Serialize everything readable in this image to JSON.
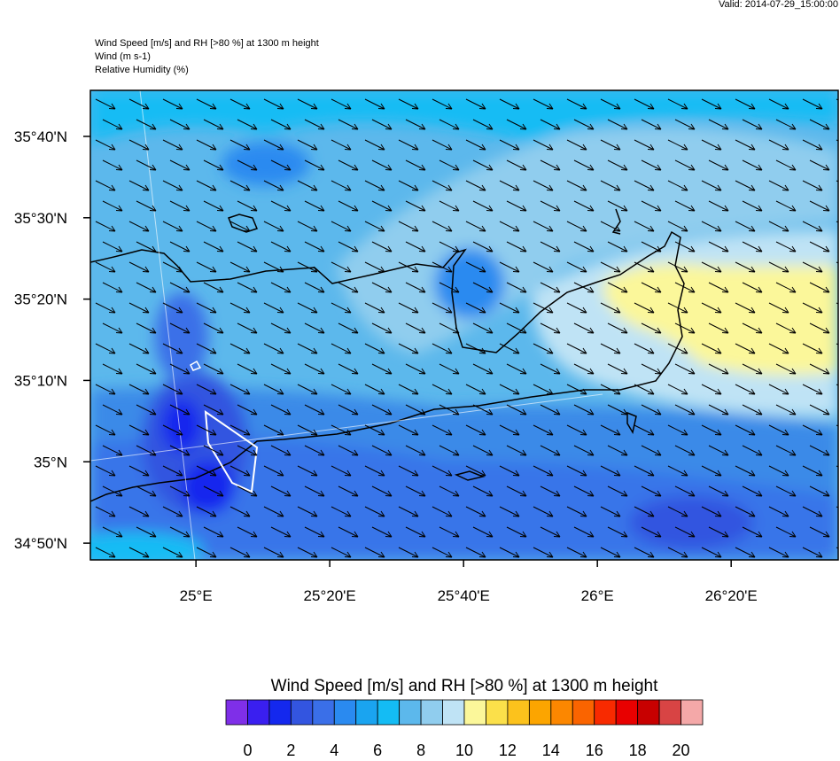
{
  "header": {
    "valid": "Valid: 2014-07-29_15:00:00",
    "lines": [
      "Wind Speed [m/s] and RH [>80 %] at 1300 m height",
      "Wind   (m s-1)",
      "Relative Humidity   (%)"
    ]
  },
  "map": {
    "lat_range": [
      34.799,
      35.761
    ],
    "lon_range": [
      24.737,
      26.6
    ],
    "lat_ticks": [
      {
        "value": 35.6667,
        "label": "35°40'N"
      },
      {
        "value": 35.5,
        "label": "35°30'N"
      },
      {
        "value": 35.3333,
        "label": "35°20'N"
      },
      {
        "value": 35.1667,
        "label": "35°10'N"
      },
      {
        "value": 35,
        "label": "35°N"
      },
      {
        "value": 34.8333,
        "label": "34°50'N"
      }
    ],
    "lon_ticks": [
      {
        "value": 25,
        "label": "25°E"
      },
      {
        "value": 25.3333,
        "label": "25°20'E"
      },
      {
        "value": 25.6667,
        "label": "25°40'E"
      },
      {
        "value": 26,
        "label": "26°E"
      },
      {
        "value": 26.3333,
        "label": "26°20'E"
      }
    ]
  },
  "colorbar": {
    "title": "Wind Speed [m/s] and RH [>80 %] at 1300 m height",
    "colors": [
      "#7f2fe8",
      "#3a1ff0",
      "#1428ee",
      "#3355e0",
      "#3a6fe8",
      "#2a8af0",
      "#1aa4f0",
      "#14bcf4",
      "#5cb8ec",
      "#90cdee",
      "#bfe3f5",
      "#fbf79a",
      "#fbe04a",
      "#fcc21c",
      "#fca500",
      "#fc8700",
      "#fa6400",
      "#f82a00",
      "#e80000",
      "#c80000",
      "#d84444",
      "#f4a8a8"
    ],
    "labels": [
      0,
      2,
      4,
      6,
      8,
      10,
      12,
      14,
      16,
      18,
      20
    ]
  }
}
